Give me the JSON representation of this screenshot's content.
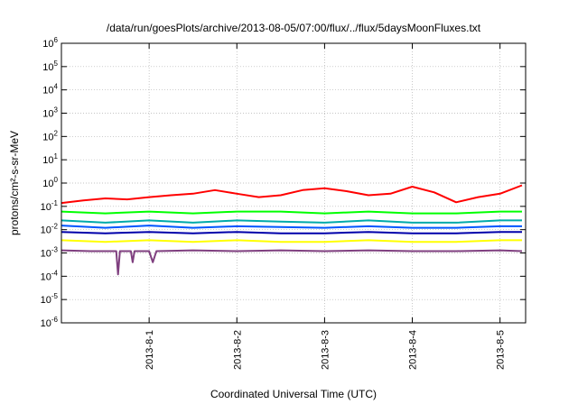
{
  "chart_data": {
    "type": "line",
    "title": "/data/run/goesPlots/archive/2013-08-05/07:00/flux/../flux/5daysMoonFluxes.txt",
    "xlabel": "Coordinated Universal Time (UTC)",
    "ylabel": "protons/cm²-s-sr-MeV",
    "y_scale": "log",
    "ylim": [
      "1e-6",
      "1e6"
    ],
    "y_ticks": [
      {
        "base": "10",
        "exp": "6"
      },
      {
        "base": "10",
        "exp": "5"
      },
      {
        "base": "10",
        "exp": "4"
      },
      {
        "base": "10",
        "exp": "3"
      },
      {
        "base": "10",
        "exp": "2"
      },
      {
        "base": "10",
        "exp": "1"
      },
      {
        "base": "10",
        "exp": "0"
      },
      {
        "base": "10",
        "exp": "-1"
      },
      {
        "base": "10",
        "exp": "-2"
      },
      {
        "base": "10",
        "exp": "-3"
      },
      {
        "base": "10",
        "exp": "-4"
      },
      {
        "base": "10",
        "exp": "-5"
      },
      {
        "base": "10",
        "exp": "-6"
      }
    ],
    "x_ticks": [
      "2013-8-1",
      "2013-8-2",
      "2013-8-3",
      "2013-8-4",
      "2013-8-5"
    ],
    "xlim": [
      "2013-07-31 00:00",
      "2013-08-05 07:00"
    ],
    "grid": true,
    "legend": "none",
    "series": [
      {
        "color": "#ff0000",
        "x": [
          "2013-07-31 00:00",
          "2013-07-31 06:00",
          "2013-07-31 12:00",
          "2013-07-31 18:00",
          "2013-08-01 00:00",
          "2013-08-01 06:00",
          "2013-08-01 12:00",
          "2013-08-01 18:00",
          "2013-08-02 00:00",
          "2013-08-02 06:00",
          "2013-08-02 12:00",
          "2013-08-02 18:00",
          "2013-08-03 00:00",
          "2013-08-03 06:00",
          "2013-08-03 12:00",
          "2013-08-03 18:00",
          "2013-08-04 00:00",
          "2013-08-04 06:00",
          "2013-08-04 12:00",
          "2013-08-04 18:00",
          "2013-08-05 00:00",
          "2013-08-05 06:00"
        ],
        "values": [
          0.14,
          0.18,
          0.22,
          0.2,
          0.25,
          0.3,
          0.35,
          0.5,
          0.35,
          0.25,
          0.3,
          0.5,
          0.6,
          0.45,
          0.3,
          0.35,
          0.7,
          0.4,
          0.15,
          0.25,
          0.35,
          0.8
        ]
      },
      {
        "color": "#00ff00",
        "x": [
          "2013-07-31 00:00",
          "2013-07-31 12:00",
          "2013-08-01 00:00",
          "2013-08-01 12:00",
          "2013-08-02 00:00",
          "2013-08-02 12:00",
          "2013-08-03 00:00",
          "2013-08-03 12:00",
          "2013-08-04 00:00",
          "2013-08-04 12:00",
          "2013-08-05 00:00",
          "2013-08-05 06:00"
        ],
        "values": [
          0.06,
          0.05,
          0.06,
          0.05,
          0.06,
          0.06,
          0.05,
          0.06,
          0.05,
          0.05,
          0.06,
          0.06
        ]
      },
      {
        "color": "#00aaaa",
        "x": [
          "2013-07-31 00:00",
          "2013-07-31 12:00",
          "2013-08-01 00:00",
          "2013-08-01 12:00",
          "2013-08-02 00:00",
          "2013-08-02 12:00",
          "2013-08-03 00:00",
          "2013-08-03 12:00",
          "2013-08-04 00:00",
          "2013-08-04 12:00",
          "2013-08-05 00:00",
          "2013-08-05 06:00"
        ],
        "values": [
          0.025,
          0.02,
          0.025,
          0.02,
          0.025,
          0.022,
          0.02,
          0.025,
          0.02,
          0.02,
          0.025,
          0.025
        ]
      },
      {
        "color": "#0055ff",
        "x": [
          "2013-07-31 00:00",
          "2013-07-31 12:00",
          "2013-08-01 00:00",
          "2013-08-01 12:00",
          "2013-08-02 00:00",
          "2013-08-02 12:00",
          "2013-08-03 00:00",
          "2013-08-03 12:00",
          "2013-08-04 00:00",
          "2013-08-04 12:00",
          "2013-08-05 00:00",
          "2013-08-05 06:00"
        ],
        "values": [
          0.015,
          0.012,
          0.015,
          0.012,
          0.014,
          0.013,
          0.012,
          0.014,
          0.012,
          0.012,
          0.014,
          0.014
        ]
      },
      {
        "color": "#0000aa",
        "x": [
          "2013-07-31 00:00",
          "2013-07-31 12:00",
          "2013-08-01 00:00",
          "2013-08-01 12:00",
          "2013-08-02 00:00",
          "2013-08-02 12:00",
          "2013-08-03 00:00",
          "2013-08-03 12:00",
          "2013-08-04 00:00",
          "2013-08-04 12:00",
          "2013-08-05 00:00",
          "2013-08-05 06:00"
        ],
        "values": [
          0.008,
          0.007,
          0.008,
          0.007,
          0.008,
          0.007,
          0.007,
          0.008,
          0.007,
          0.007,
          0.008,
          0.008
        ]
      },
      {
        "color": "#ffff00",
        "x": [
          "2013-07-31 00:00",
          "2013-07-31 12:00",
          "2013-08-01 00:00",
          "2013-08-01 12:00",
          "2013-08-02 00:00",
          "2013-08-02 12:00",
          "2013-08-03 00:00",
          "2013-08-03 12:00",
          "2013-08-04 00:00",
          "2013-08-04 12:00",
          "2013-08-05 00:00",
          "2013-08-05 06:00"
        ],
        "values": [
          0.0035,
          0.003,
          0.0035,
          0.003,
          0.0035,
          0.003,
          0.003,
          0.0035,
          0.003,
          0.003,
          0.0035,
          0.0035
        ]
      },
      {
        "color": "#7f3f7f",
        "x": [
          "2013-07-31 00:00",
          "2013-07-31 08:00",
          "2013-07-31 15:00",
          "2013-07-31 15:30",
          "2013-07-31 16:00",
          "2013-07-31 19:00",
          "2013-07-31 19:30",
          "2013-07-31 20:00",
          "2013-08-01 00:00",
          "2013-08-01 01:00",
          "2013-08-01 02:00",
          "2013-08-01 12:00",
          "2013-08-02 00:00",
          "2013-08-02 12:00",
          "2013-08-03 00:00",
          "2013-08-03 12:00",
          "2013-08-04 00:00",
          "2013-08-04 12:00",
          "2013-08-05 00:00",
          "2013-08-05 06:00"
        ],
        "values": [
          0.0013,
          0.0012,
          0.0012,
          0.00012,
          0.0012,
          0.0012,
          0.0004,
          0.0012,
          0.0012,
          0.0004,
          0.0012,
          0.0013,
          0.0012,
          0.0013,
          0.0012,
          0.0013,
          0.0012,
          0.0012,
          0.0013,
          0.0012
        ]
      }
    ]
  }
}
